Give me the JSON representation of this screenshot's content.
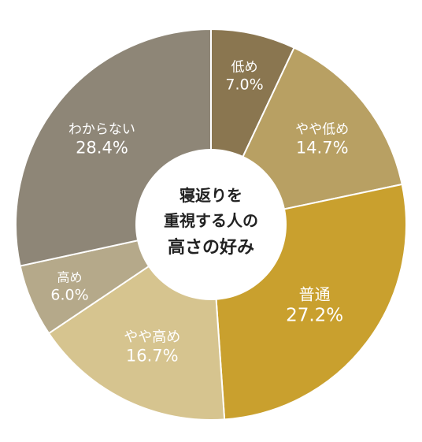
{
  "chart_data": {
    "type": "pie",
    "donut": true,
    "start_angle_deg": 0,
    "direction": "clockwise",
    "center_text": [
      "寝返りを",
      "重視する人の",
      "高さの好み"
    ],
    "slices": [
      {
        "label": "低め",
        "value": 7.0,
        "value_text": "7.0%",
        "color": "#8a7650"
      },
      {
        "label": "やや低め",
        "value": 14.7,
        "value_text": "14.7%",
        "color": "#b8a063"
      },
      {
        "label": "普通",
        "value": 27.2,
        "value_text": "27.2%",
        "color": "#c9a02e"
      },
      {
        "label": "やや高め",
        "value": 16.7,
        "value_text": "16.7%",
        "color": "#d6c48f"
      },
      {
        "label": "高め",
        "value": 6.0,
        "value_text": "6.0%",
        "color": "#b5a98a"
      },
      {
        "label": "わからない",
        "value": 28.4,
        "value_text": "28.4%",
        "color": "#8e8677"
      }
    ]
  }
}
